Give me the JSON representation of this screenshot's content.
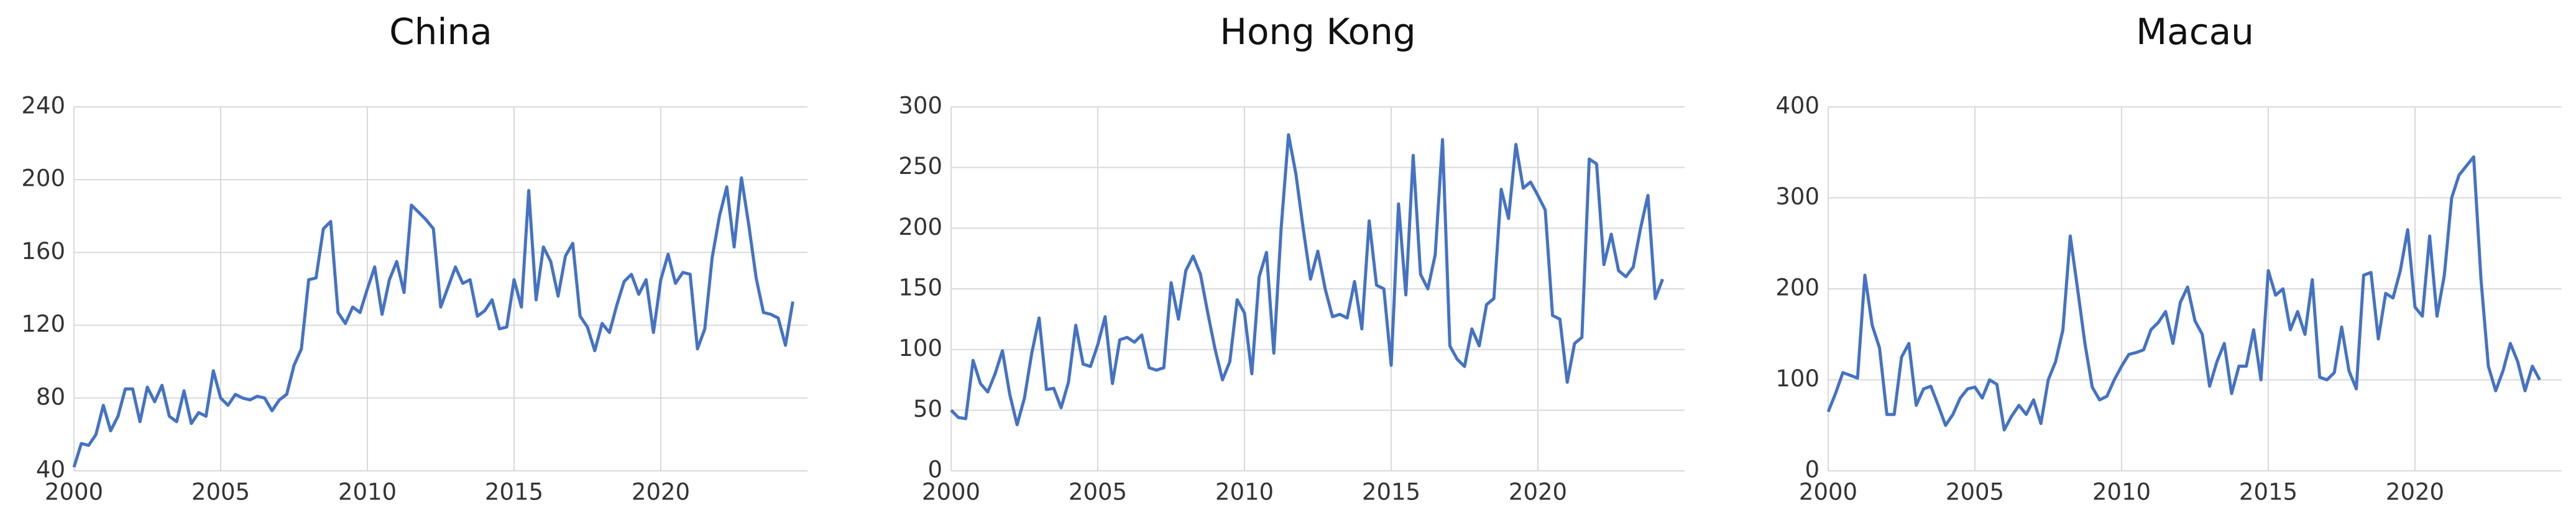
{
  "chart_data": [
    {
      "type": "line",
      "title": "China",
      "color": "#4472c4",
      "grid": true,
      "xlim": [
        2000,
        2025
      ],
      "xticks": [
        2000,
        2005,
        2010,
        2015,
        2020
      ],
      "ylim": [
        40,
        240
      ],
      "yticks": [
        40,
        80,
        120,
        160,
        200,
        240
      ],
      "x": [
        2000,
        2000.25,
        2000.5,
        2000.75,
        2001,
        2001.25,
        2001.5,
        2001.75,
        2002,
        2002.25,
        2002.5,
        2002.75,
        2003,
        2003.25,
        2003.5,
        2003.75,
        2004,
        2004.25,
        2004.5,
        2004.75,
        2005,
        2005.25,
        2005.5,
        2005.75,
        2006,
        2006.25,
        2006.5,
        2006.75,
        2007,
        2007.25,
        2007.5,
        2007.75,
        2008,
        2008.25,
        2008.5,
        2008.75,
        2009,
        2009.25,
        2009.5,
        2009.75,
        2010,
        2010.25,
        2010.5,
        2010.75,
        2011,
        2011.25,
        2011.5,
        2011.75,
        2012,
        2012.25,
        2012.5,
        2012.75,
        2013,
        2013.25,
        2013.5,
        2013.75,
        2014,
        2014.25,
        2014.5,
        2014.75,
        2015,
        2015.25,
        2015.5,
        2015.75,
        2016,
        2016.25,
        2016.5,
        2016.75,
        2017,
        2017.25,
        2017.5,
        2017.75,
        2018,
        2018.25,
        2018.5,
        2018.75,
        2019,
        2019.25,
        2019.5,
        2019.75,
        2020,
        2020.25,
        2020.5,
        2020.75,
        2021,
        2021.25,
        2021.5,
        2021.75,
        2022,
        2022.25,
        2022.5,
        2022.75,
        2023,
        2023.25,
        2023.5,
        2023.75,
        2024,
        2024.25,
        2024.5
      ],
      "values": [
        42,
        55,
        54,
        60,
        76,
        62,
        70,
        85,
        85,
        67,
        86,
        78,
        87,
        70,
        67,
        84,
        66,
        72,
        70,
        95,
        80,
        76,
        82,
        80,
        79,
        81,
        80,
        73,
        79,
        82,
        98,
        107,
        145,
        146,
        173,
        177,
        127,
        121,
        130,
        127,
        140,
        152,
        126,
        145,
        155,
        138,
        186,
        182,
        178,
        173,
        130,
        141,
        152,
        143,
        145,
        125,
        128,
        134,
        118,
        119,
        145,
        130,
        194,
        134,
        163,
        155,
        136,
        158,
        165,
        125,
        119,
        106,
        121,
        116,
        131,
        144,
        148,
        137,
        145,
        116,
        145,
        159,
        143,
        149,
        148,
        107,
        118,
        157,
        180,
        196,
        163,
        201,
        175,
        146,
        127,
        126,
        124,
        109,
        133
      ]
    },
    {
      "type": "line",
      "title": "Hong Kong",
      "color": "#4472c4",
      "grid": true,
      "xlim": [
        2000,
        2025
      ],
      "xticks": [
        2000,
        2005,
        2010,
        2015,
        2020
      ],
      "ylim": [
        0,
        300
      ],
      "yticks": [
        0,
        50,
        100,
        150,
        200,
        250,
        300
      ],
      "x": [
        2000,
        2000.25,
        2000.5,
        2000.75,
        2001,
        2001.25,
        2001.5,
        2001.75,
        2002,
        2002.25,
        2002.5,
        2002.75,
        2003,
        2003.25,
        2003.5,
        2003.75,
        2004,
        2004.25,
        2004.5,
        2004.75,
        2005,
        2005.25,
        2005.5,
        2005.75,
        2006,
        2006.25,
        2006.5,
        2006.75,
        2007,
        2007.25,
        2007.5,
        2007.75,
        2008,
        2008.25,
        2008.5,
        2008.75,
        2009,
        2009.25,
        2009.5,
        2009.75,
        2010,
        2010.25,
        2010.5,
        2010.75,
        2011,
        2011.25,
        2011.5,
        2011.75,
        2012,
        2012.25,
        2012.5,
        2012.75,
        2013,
        2013.25,
        2013.5,
        2013.75,
        2014,
        2014.25,
        2014.5,
        2014.75,
        2015,
        2015.25,
        2015.5,
        2015.75,
        2016,
        2016.25,
        2016.5,
        2016.75,
        2017,
        2017.25,
        2017.5,
        2017.75,
        2018,
        2018.25,
        2018.5,
        2018.75,
        2019,
        2019.25,
        2019.5,
        2019.75,
        2020,
        2020.25,
        2020.5,
        2020.75,
        2021,
        2021.25,
        2021.5,
        2021.75,
        2022,
        2022.25,
        2022.5,
        2022.75,
        2023,
        2023.25,
        2023.5,
        2023.75,
        2024,
        2024.25
      ],
      "values": [
        50,
        44,
        43,
        91,
        72,
        65,
        80,
        99,
        63,
        38,
        60,
        97,
        126,
        67,
        68,
        52,
        73,
        120,
        88,
        86,
        104,
        127,
        72,
        108,
        110,
        106,
        112,
        85,
        83,
        85,
        155,
        125,
        165,
        177,
        162,
        130,
        100,
        75,
        90,
        141,
        130,
        80,
        160,
        180,
        97,
        200,
        277,
        245,
        200,
        158,
        181,
        150,
        127,
        129,
        126,
        156,
        117,
        206,
        153,
        150,
        87,
        220,
        145,
        260,
        162,
        150,
        178,
        273,
        103,
        92,
        86,
        117,
        103,
        137,
        142,
        232,
        208,
        269,
        233,
        238,
        227,
        215,
        128,
        125,
        73,
        105,
        110,
        257,
        253,
        170,
        195,
        165,
        160,
        168,
        200,
        227,
        142,
        158
      ]
    },
    {
      "type": "line",
      "title": "Macau",
      "color": "#4472c4",
      "grid": true,
      "xlim": [
        2000,
        2025
      ],
      "xticks": [
        2000,
        2005,
        2010,
        2015,
        2020
      ],
      "ylim": [
        0,
        400
      ],
      "yticks": [
        0,
        100,
        200,
        300,
        400
      ],
      "x": [
        2000,
        2000.25,
        2000.5,
        2000.75,
        2001,
        2001.25,
        2001.5,
        2001.75,
        2002,
        2002.25,
        2002.5,
        2002.75,
        2003,
        2003.25,
        2003.5,
        2003.75,
        2004,
        2004.25,
        2004.5,
        2004.75,
        2005,
        2005.25,
        2005.5,
        2005.75,
        2006,
        2006.25,
        2006.5,
        2006.75,
        2007,
        2007.25,
        2007.5,
        2007.75,
        2008,
        2008.25,
        2008.5,
        2008.75,
        2009,
        2009.25,
        2009.5,
        2009.75,
        2010,
        2010.25,
        2010.5,
        2010.75,
        2011,
        2011.25,
        2011.5,
        2011.75,
        2012,
        2012.25,
        2012.5,
        2012.75,
        2013,
        2013.25,
        2013.5,
        2013.75,
        2014,
        2014.25,
        2014.5,
        2014.75,
        2015,
        2015.25,
        2015.5,
        2015.75,
        2016,
        2016.25,
        2016.5,
        2016.75,
        2017,
        2017.25,
        2017.5,
        2017.75,
        2018,
        2018.25,
        2018.5,
        2018.75,
        2019,
        2019.25,
        2019.5,
        2019.75,
        2020,
        2020.25,
        2020.5,
        2020.75,
        2021,
        2021.25,
        2021.5,
        2021.75,
        2022,
        2022.25,
        2022.5,
        2022.75,
        2023,
        2023.25,
        2023.5,
        2023.75,
        2024,
        2024.25
      ],
      "values": [
        65,
        85,
        108,
        105,
        102,
        215,
        160,
        135,
        62,
        62,
        125,
        140,
        72,
        90,
        93,
        72,
        50,
        62,
        80,
        90,
        92,
        80,
        100,
        95,
        45,
        60,
        72,
        62,
        78,
        52,
        100,
        120,
        155,
        258,
        200,
        140,
        92,
        78,
        82,
        100,
        115,
        128,
        130,
        133,
        155,
        163,
        175,
        140,
        185,
        202,
        165,
        150,
        93,
        120,
        140,
        85,
        115,
        115,
        155,
        100,
        220,
        193,
        200,
        155,
        175,
        150,
        210,
        103,
        100,
        108,
        158,
        110,
        90,
        215,
        218,
        145,
        195,
        190,
        220,
        265,
        180,
        170,
        258,
        170,
        215,
        300,
        325,
        335,
        345,
        210,
        115,
        88,
        110,
        140,
        120,
        88,
        115,
        100
      ]
    }
  ]
}
